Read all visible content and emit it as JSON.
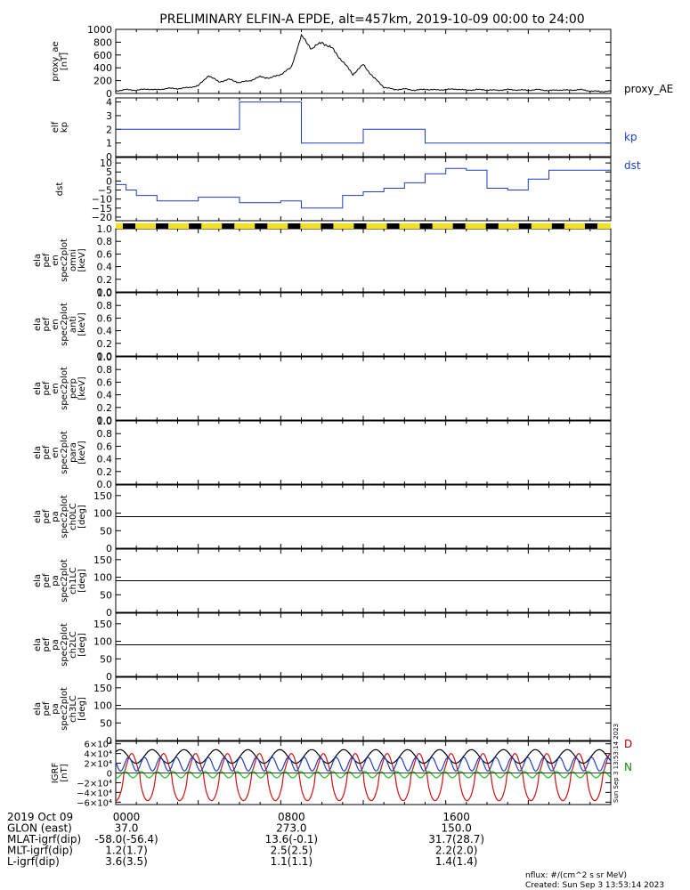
{
  "title": "PRELIMINARY ELFIN-A EPDE, alt=457km, 2019-10-09 00:00 to 24:00",
  "colors": {
    "black": "#000000",
    "blue": "#1f3fbf",
    "red": "#d01010",
    "green": "#1fbf1f",
    "yellow": "#f0e020",
    "darkred": "#b00000",
    "darkgreen": "#118811"
  },
  "chart_data": [
    {
      "type": "line",
      "ylabel": [
        "proxy_ae",
        "[nT]"
      ],
      "legend": "proxy_AE",
      "ylim": [
        0,
        1000
      ],
      "yticks": [
        0,
        200,
        400,
        600,
        800,
        1000
      ],
      "ytick_labels": [
        "0",
        "200",
        "400",
        "600",
        "800",
        "1000"
      ],
      "x_hours": [
        0,
        0.5,
        1,
        1.5,
        2,
        2.5,
        3,
        3.5,
        4,
        4.5,
        5,
        5.5,
        6,
        6.5,
        7,
        7.5,
        8,
        8.5,
        9,
        9.5,
        10,
        10.5,
        11,
        11.5,
        12,
        12.5,
        13,
        13.5,
        14,
        14.5,
        15,
        15.5,
        16,
        16.5,
        17,
        17.5,
        18,
        18.5,
        19,
        19.5,
        20,
        20.5,
        21,
        21.5,
        22,
        22.5,
        23,
        23.5,
        24
      ],
      "values": [
        40,
        60,
        50,
        70,
        55,
        80,
        75,
        90,
        120,
        280,
        180,
        220,
        170,
        200,
        260,
        240,
        300,
        400,
        900,
        700,
        800,
        700,
        500,
        300,
        450,
        250,
        100,
        60,
        70,
        50,
        65,
        55,
        60,
        70,
        50,
        60,
        55,
        50,
        60,
        55,
        50,
        60,
        45,
        55,
        50,
        60,
        40,
        30,
        35
      ]
    },
    {
      "type": "step",
      "ylabel": [
        "elf",
        "kp"
      ],
      "legend": "kp",
      "ylim": [
        0,
        4.3
      ],
      "yticks": [
        0,
        1,
        2,
        3,
        4
      ],
      "ytick_labels": [
        "0",
        "1",
        "2",
        "3",
        "4"
      ],
      "x_hours": [
        0,
        3,
        6,
        9,
        12,
        15,
        18,
        21,
        24
      ],
      "values": [
        2,
        2,
        4,
        1,
        2,
        1,
        1,
        1
      ]
    },
    {
      "type": "step",
      "ylabel": [
        "dst"
      ],
      "legend": "dst",
      "ylim": [
        -22,
        13
      ],
      "yticks": [
        10,
        5,
        0,
        -5,
        -10,
        -15,
        -20
      ],
      "ytick_labels": [
        "10",
        "5",
        "0",
        "−5",
        "−10",
        "−15",
        "−20"
      ],
      "x_hours": [
        0,
        0.5,
        1,
        2,
        3,
        4,
        5,
        6,
        7,
        8,
        9,
        10,
        11,
        12,
        13,
        14,
        15,
        16,
        17,
        18,
        19,
        20,
        21,
        22,
        23,
        24
      ],
      "values": [
        -2,
        -5,
        -8,
        -11,
        -11,
        -9,
        -9,
        -12,
        -12,
        -11,
        -15,
        -15,
        -8,
        -6,
        -4,
        -1,
        4,
        7,
        6,
        -4,
        -5,
        1,
        6,
        6,
        6
      ]
    },
    {
      "type": "spectrogram-empty",
      "ylabel": [
        "ela",
        "pef",
        "en",
        "spec2plot",
        "omni",
        "[keV]"
      ],
      "ylim": [
        0,
        1
      ],
      "ytick_labels": [
        "0.0",
        "0.2",
        "0.4",
        "0.6",
        "0.8",
        "1.0"
      ]
    },
    {
      "type": "spectrogram-empty",
      "ylabel": [
        "ela",
        "pef",
        "en",
        "spec2plot",
        "anti",
        "[keV]"
      ],
      "ylim": [
        0,
        1
      ],
      "ytick_labels": [
        "0.0",
        "0.2",
        "0.4",
        "0.6",
        "0.8",
        "1.0"
      ]
    },
    {
      "type": "spectrogram-empty",
      "ylabel": [
        "ela",
        "pef",
        "en",
        "spec2plot",
        "perp",
        "[keV]"
      ],
      "ylim": [
        0,
        1
      ],
      "ytick_labels": [
        "0.0",
        "0.2",
        "0.4",
        "0.6",
        "0.8",
        "1.0"
      ]
    },
    {
      "type": "spectrogram-empty",
      "ylabel": [
        "ela",
        "pef",
        "en",
        "spec2plot",
        "para",
        "[keV]"
      ],
      "ylim": [
        0,
        1
      ],
      "ytick_labels": [
        "0.0",
        "0.2",
        "0.4",
        "0.6",
        "0.8",
        "1.0"
      ]
    },
    {
      "type": "spectrogram-empty",
      "ylabel": [
        "ela",
        "pef",
        "pa",
        "spec2plot",
        "ch0LC",
        "[deg]"
      ],
      "ylim": [
        0,
        180
      ],
      "ytick_labels": [
        "0",
        "50",
        "100",
        "150"
      ],
      "reference_line": 90
    },
    {
      "type": "spectrogram-empty",
      "ylabel": [
        "ela",
        "pef",
        "pa",
        "spec2plot",
        "ch1LC",
        "[deg]"
      ],
      "ylim": [
        0,
        180
      ],
      "ytick_labels": [
        "0",
        "50",
        "100",
        "150"
      ],
      "reference_line": 90
    },
    {
      "type": "spectrogram-empty",
      "ylabel": [
        "ela",
        "pef",
        "pa",
        "spec2plot",
        "ch2LC",
        "[deg]"
      ],
      "ylim": [
        0,
        180
      ],
      "ytick_labels": [
        "0",
        "50",
        "100",
        "150"
      ],
      "reference_line": 90
    },
    {
      "type": "spectrogram-empty",
      "ylabel": [
        "ela",
        "pef",
        "pa",
        "spec2plot",
        "ch3LC",
        "[deg]"
      ],
      "ylim": [
        0,
        180
      ],
      "ytick_labels": [
        "0",
        "50",
        "100",
        "150"
      ],
      "reference_line": 90
    },
    {
      "type": "line",
      "ylabel": [
        "IGRF",
        "[nT]"
      ],
      "ylim": [
        -65000,
        65000
      ],
      "ytick_labels": [
        "6×10⁴",
        "4×10⁴",
        "2×10⁴",
        "0",
        "−2×10⁴",
        "−4×10⁴",
        "−6×10⁴"
      ],
      "ytick_values": [
        60000,
        40000,
        20000,
        0,
        -20000,
        -40000,
        -60000
      ],
      "legend": [
        "D",
        "N"
      ],
      "orbits_per_day": 15.5,
      "series": [
        {
          "name": "D",
          "color": "#d01010",
          "amplitude_low": -57000,
          "amplitude_high": 40000
        },
        {
          "name": "",
          "color": "#000000",
          "amplitude_low": 20000,
          "amplitude_high": 48000
        },
        {
          "name": "",
          "color": "#1f3fbf",
          "amplitude_low": 4000,
          "amplitude_high": 32000
        },
        {
          "name": "N",
          "color": "#1fbf1f",
          "amplitude_low": -10000,
          "amplitude_high": 3000
        }
      ]
    }
  ],
  "footer": {
    "rows": [
      {
        "label": "2019 Oct 09",
        "values": [
          "0000",
          "0800",
          "1600"
        ]
      },
      {
        "label": "GLON (east)",
        "values": [
          "37.0",
          "273.0",
          "150.0"
        ]
      },
      {
        "label": "MLAT-igrf(dip)",
        "values": [
          "-58.0(-56.4)",
          "13.6(-0.1)",
          "31.7(28.7)"
        ]
      },
      {
        "label": "MLT-igrf(dip)",
        "values": [
          "1.2(1.7)",
          "2.5(2.5)",
          "2.2(2.0)"
        ]
      },
      {
        "label": "L-igrf(dip)",
        "values": [
          "3.6(3.5)",
          "1.1(1.1)",
          "1.4(1.4)"
        ]
      }
    ],
    "units_note": "nflux: #/(cm^2 s sr MeV)",
    "created_note": "Created: Sun Sep  3 13:53:14 2023",
    "side_stamp": "Sun Sep  3 13:53:14 2023"
  }
}
